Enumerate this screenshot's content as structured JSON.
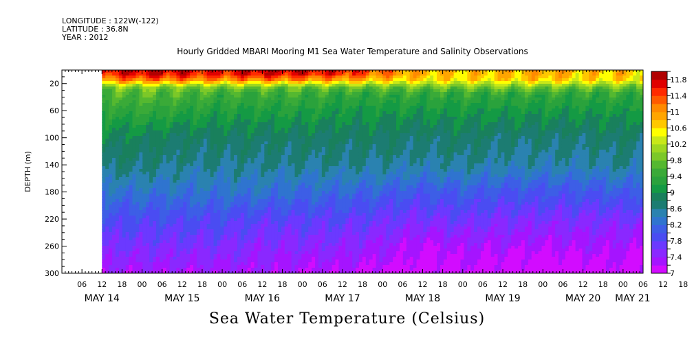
{
  "header": {
    "longitude": "LONGITUDE : 122W(-122)",
    "latitude": "LATITUDE : 36.8N",
    "year": "YEAR : 2012",
    "title": "Hourly Gridded MBARI Mooring M1 Sea Water Temperature and Salinity Observations"
  },
  "chart_data": {
    "type": "heatmap",
    "title": "Hourly Gridded MBARI Mooring M1 Sea Water Temperature and Salinity Observations",
    "colorbar_label": "Sea Water Temperature (Celsius)",
    "ylabel": "DEPTH (m)",
    "ylim": [
      0,
      300
    ],
    "y_inverted": true,
    "y_ticks": [
      20,
      60,
      100,
      140,
      180,
      220,
      260,
      300
    ],
    "x_range_hours": [
      "2012-05-14 00:00",
      "2012-05-21 06:00"
    ],
    "data_start": "2012-05-14 12:00",
    "hour_ticks": [
      "06",
      "12",
      "18",
      "00",
      "06",
      "12",
      "18",
      "00",
      "06",
      "12",
      "18",
      "00",
      "06",
      "12",
      "18",
      "00",
      "06",
      "12",
      "18",
      "00",
      "06",
      "12",
      "18",
      "00",
      "06",
      "12",
      "18",
      "00",
      "06",
      "12",
      "18",
      "00"
    ],
    "day_labels": [
      "MAY 14",
      "MAY 15",
      "MAY 16",
      "MAY 17",
      "MAY 18",
      "MAY 19",
      "MAY 20",
      "MAY 21"
    ],
    "colorbar_ticks": [
      "11.8",
      "11.4",
      "11",
      "10.6",
      "10.2",
      "9.8",
      "9.4",
      "9",
      "8.6",
      "8.2",
      "7.8",
      "7.4",
      "7"
    ],
    "levels": [
      7.0,
      7.2,
      7.4,
      7.6,
      7.8,
      8.0,
      8.2,
      8.4,
      8.6,
      8.8,
      9.0,
      9.2,
      9.4,
      9.6,
      9.8,
      10.0,
      10.2,
      10.4,
      10.6,
      10.8,
      11.0,
      11.2,
      11.4,
      11.6,
      11.8,
      12.0
    ],
    "level_colors": [
      "#d20cff",
      "#a514ff",
      "#8a28ff",
      "#6b39ff",
      "#4a4cf2",
      "#3d5ee6",
      "#2f74cf",
      "#2a82b0",
      "#1c7c72",
      "#19805c",
      "#149a44",
      "#2aa23c",
      "#3aaa38",
      "#55b830",
      "#7cc828",
      "#9ed720",
      "#c8e818",
      "#ffff00",
      "#ffc800",
      "#ffa500",
      "#ff8a00",
      "#ff5a00",
      "#ff2a00",
      "#e00000",
      "#b00000"
    ],
    "profile": {
      "days": [
        0.5,
        1.0,
        1.5,
        2.0,
        2.5,
        3.0,
        3.5,
        4.0,
        4.5,
        5.0,
        5.5,
        6.0,
        6.5,
        7.0,
        7.25
      ],
      "depths": [
        5,
        15,
        25,
        35,
        60,
        100,
        140,
        180,
        220,
        260,
        300
      ],
      "temperature": [
        [
          11.6,
          11.8,
          11.7,
          11.6,
          11.8,
          11.7,
          11.6,
          11.2,
          10.8,
          10.7,
          10.8,
          10.9,
          10.7,
          10.8,
          10.6
        ],
        [
          11.0,
          11.2,
          11.1,
          11.0,
          11.1,
          11.0,
          10.9,
          10.7,
          10.6,
          10.6,
          10.6,
          10.7,
          10.6,
          10.6,
          10.5
        ],
        [
          9.9,
          10.0,
          9.9,
          9.9,
          9.9,
          9.8,
          9.8,
          9.8,
          9.8,
          9.9,
          9.9,
          9.9,
          9.8,
          9.9,
          9.8
        ],
        [
          9.6,
          9.7,
          9.6,
          9.5,
          9.5,
          9.5,
          9.4,
          9.4,
          9.4,
          9.4,
          9.4,
          9.4,
          9.4,
          9.4,
          9.4
        ],
        [
          9.3,
          9.4,
          9.3,
          9.2,
          9.2,
          9.2,
          9.1,
          9.1,
          9.1,
          9.1,
          9.1,
          9.1,
          9.1,
          9.1,
          9.1
        ],
        [
          8.9,
          8.9,
          8.8,
          8.8,
          8.8,
          8.8,
          8.8,
          8.8,
          8.7,
          8.8,
          8.7,
          8.7,
          8.7,
          8.8,
          8.7
        ],
        [
          8.7,
          8.7,
          8.6,
          8.6,
          8.6,
          8.6,
          8.6,
          8.6,
          8.5,
          8.6,
          8.5,
          8.5,
          8.5,
          8.6,
          8.5
        ],
        [
          8.3,
          8.3,
          8.3,
          8.3,
          8.3,
          8.2,
          8.2,
          8.1,
          8.0,
          8.1,
          8.0,
          8.0,
          8.0,
          8.1,
          8.0
        ],
        [
          7.9,
          7.9,
          7.9,
          7.9,
          7.8,
          7.8,
          7.8,
          7.7,
          7.6,
          7.7,
          7.6,
          7.6,
          7.6,
          7.6,
          7.6
        ],
        [
          7.6,
          7.6,
          7.6,
          7.6,
          7.5,
          7.5,
          7.5,
          7.4,
          7.2,
          7.3,
          7.3,
          7.2,
          7.3,
          7.3,
          7.2
        ],
        [
          7.3,
          7.3,
          7.3,
          7.3,
          7.3,
          7.2,
          7.2,
          7.1,
          7.0,
          7.1,
          7.0,
          7.0,
          7.0,
          7.1,
          7.0
        ]
      ]
    }
  }
}
